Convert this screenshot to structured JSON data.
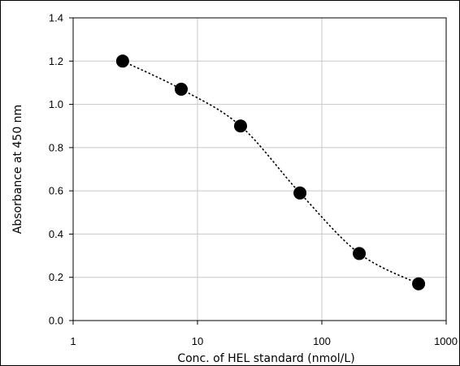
{
  "chart_data": {
    "type": "scatter",
    "title": "",
    "xlabel": "Conc. of HEL standard (nmol/L)",
    "ylabel": "Absorbance at 450 nm",
    "x_scale": "log",
    "xlim": [
      1,
      1000
    ],
    "ylim": [
      0.0,
      1.4
    ],
    "x_ticks": [
      1,
      10,
      100,
      1000
    ],
    "x_tick_labels": [
      "1",
      "10",
      "100",
      "1000"
    ],
    "y_ticks": [
      0.0,
      0.2,
      0.4,
      0.6,
      0.8,
      1.0,
      1.2,
      1.4
    ],
    "y_tick_labels": [
      "0.0",
      "0.2",
      "0.4",
      "0.6",
      "0.8",
      "1.0",
      "1.2",
      "1.4"
    ],
    "grid": true,
    "legend": "none",
    "series": [
      {
        "x": [
          2.5,
          7.4,
          22.2,
          66.7,
          200,
          600
        ],
        "y": [
          1.2,
          1.07,
          0.9,
          0.59,
          0.31,
          0.17
        ],
        "marker": "filled-circle",
        "line": "dotted-smooth",
        "color": "#000000"
      }
    ]
  }
}
